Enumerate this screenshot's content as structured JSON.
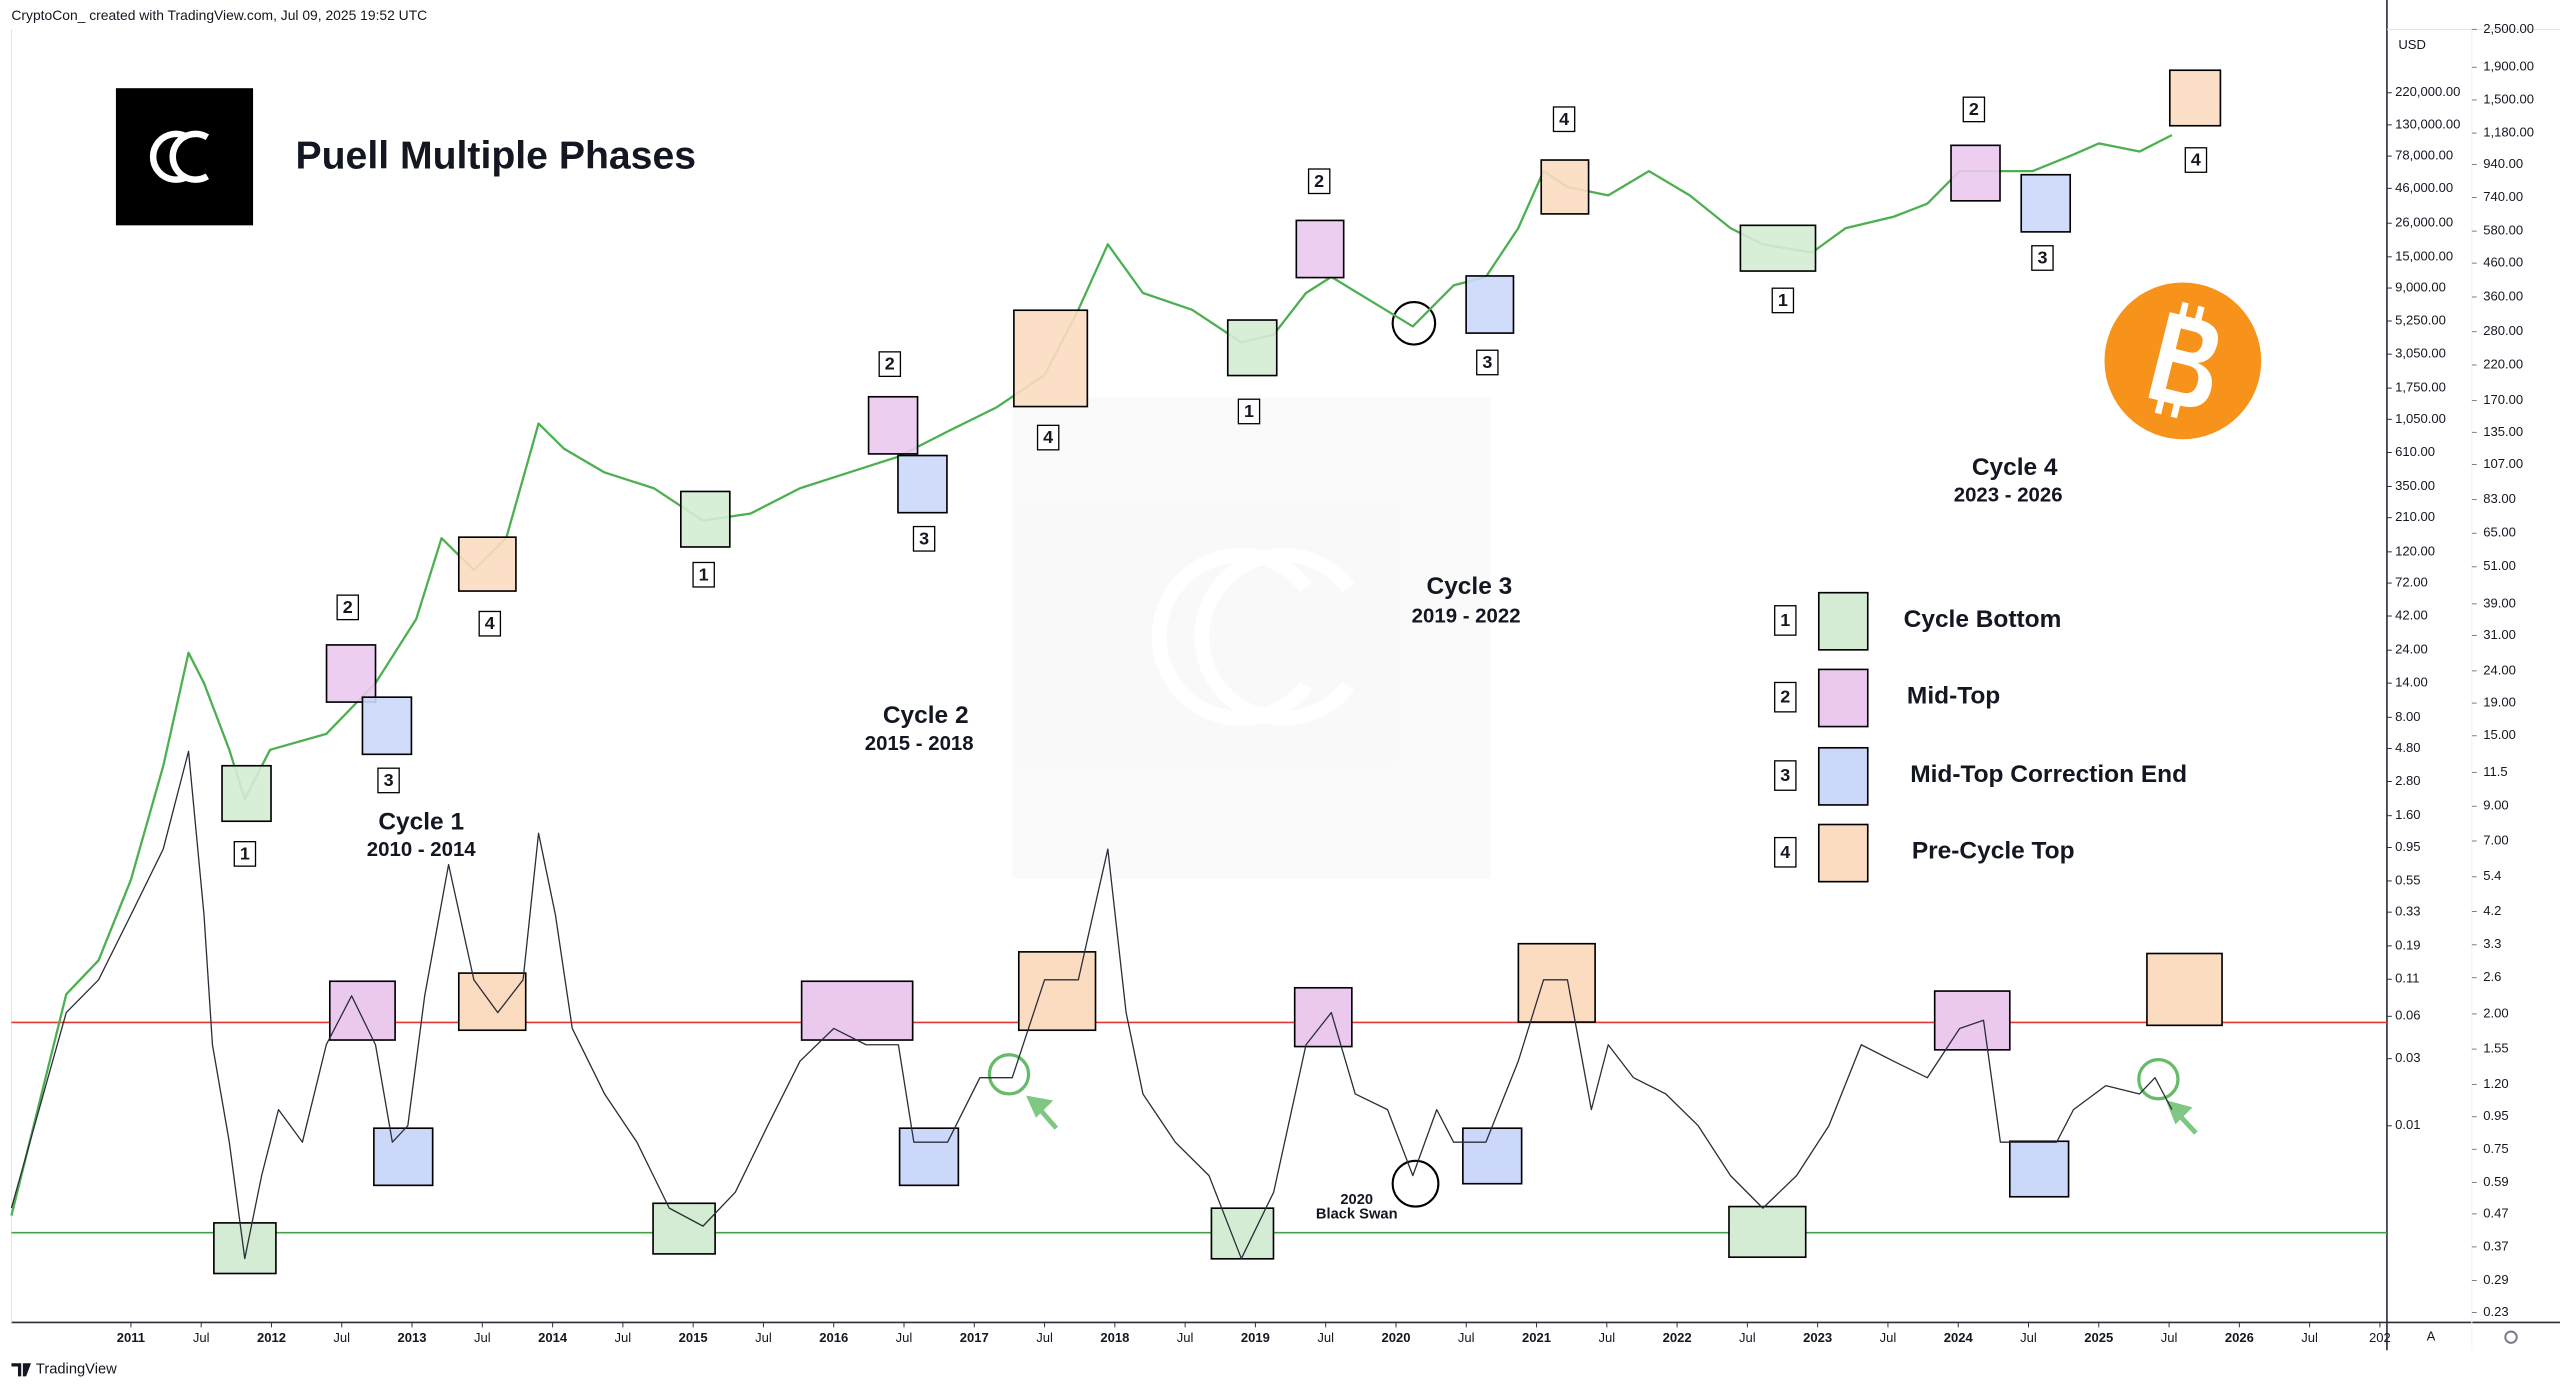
{
  "header": "CryptoCon_  created with TradingView.com, Jul 09, 2025 19:52 UTC",
  "footer": "TradingView",
  "chart_data": {
    "type": "line",
    "title": "Puell Multiple Phases",
    "currency": "USD",
    "xlim": [
      2010.15,
      2027.05
    ],
    "xticks": [
      2011,
      {
        "value": 2011.5,
        "label": "Jul"
      },
      2012,
      {
        "value": 2012.5,
        "label": "Jul"
      },
      2013,
      {
        "value": 2013.5,
        "label": "Jul"
      },
      2014,
      {
        "value": 2014.5,
        "label": "Jul"
      },
      2015,
      {
        "value": 2015.5,
        "label": "Jul"
      },
      2016,
      {
        "value": 2016.5,
        "label": "Jul"
      },
      2017,
      {
        "value": 2017.5,
        "label": "Jul"
      },
      2018,
      {
        "value": 2018.5,
        "label": "Jul"
      },
      2019,
      {
        "value": 2019.5,
        "label": "Jul"
      },
      2020,
      {
        "value": 2020.5,
        "label": "Jul"
      },
      2021,
      {
        "value": 2021.5,
        "label": "Jul"
      },
      2022,
      {
        "value": 2022.5,
        "label": "Jul"
      },
      2023,
      {
        "value": 2023.5,
        "label": "Jul"
      },
      2024,
      {
        "value": 2024.5,
        "label": "Jul"
      },
      2025,
      {
        "value": 2025.5,
        "label": "Jul"
      },
      2026,
      {
        "value": 2026.5,
        "label": "Jul"
      },
      {
        "value": 2027,
        "label": "202"
      }
    ],
    "yscale": "log",
    "ylim": [
      0.0004,
      620000
    ],
    "yticks": [
      {
        "value": 220000,
        "label": "220,000.00"
      },
      {
        "value": 130000,
        "label": "130,000.00"
      },
      {
        "value": 78000,
        "label": "78,000.00"
      },
      {
        "value": 46000,
        "label": "46,000.00"
      },
      {
        "value": 26000,
        "label": "26,000.00"
      },
      {
        "value": 15000,
        "label": "15,000.00"
      },
      {
        "value": 9000,
        "label": "9,000.00"
      },
      {
        "value": 5250,
        "label": "5,250.00"
      },
      {
        "value": 3050,
        "label": "3,050.00"
      },
      {
        "value": 1750,
        "label": "1,750.00"
      },
      {
        "value": 1050,
        "label": "1,050.00"
      },
      {
        "value": 610,
        "label": "610.00"
      },
      {
        "value": 350,
        "label": "350.00"
      },
      {
        "value": 210,
        "label": "210.00"
      },
      {
        "value": 120,
        "label": "120.00"
      },
      {
        "value": 72,
        "label": "72.00"
      },
      {
        "value": 42,
        "label": "42.00"
      },
      {
        "value": 24,
        "label": "24.00"
      },
      {
        "value": 14,
        "label": "14.00"
      },
      {
        "value": 8,
        "label": "8.00"
      },
      {
        "value": 4.8,
        "label": "4.80"
      },
      {
        "value": 2.8,
        "label": "2.80"
      },
      {
        "value": 1.6,
        "label": "1.60"
      },
      0.95,
      0.55,
      0.33,
      0.19,
      0.11,
      0.06,
      0.03,
      0.01
    ],
    "y2scale": "log",
    "y2lim": [
      0.214,
      2500
    ],
    "y2ticks": [
      {
        "value": 2500,
        "label": "2,500.00"
      },
      {
        "value": 1900,
        "label": "1,900.00"
      },
      {
        "value": 1500,
        "label": "1,500.00"
      },
      {
        "value": 1180,
        "label": "1,180.00"
      },
      {
        "value": 940,
        "label": "940.00"
      },
      {
        "value": 740,
        "label": "740.00"
      },
      {
        "value": 580,
        "label": "580.00"
      },
      {
        "value": 460,
        "label": "460.00"
      },
      {
        "value": 360,
        "label": "360.00"
      },
      {
        "value": 280,
        "label": "280.00"
      },
      {
        "value": 220,
        "label": "220.00"
      },
      {
        "value": 170,
        "label": "170.00"
      },
      {
        "value": 135,
        "label": "135.00"
      },
      {
        "value": 107,
        "label": "107.00"
      },
      {
        "value": 83,
        "label": "83.00"
      },
      {
        "value": 65,
        "label": "65.00"
      },
      {
        "value": 51,
        "label": "51.00"
      },
      {
        "value": 39,
        "label": "39.00"
      },
      {
        "value": 31,
        "label": "31.00"
      },
      {
        "value": 24,
        "label": "24.00"
      },
      {
        "value": 19,
        "label": "19.00"
      },
      {
        "value": 15,
        "label": "15.00"
      },
      11.5,
      {
        "value": 9,
        "label": "9.00"
      },
      {
        "value": 7,
        "label": "7.00"
      },
      5.4,
      4.2,
      3.3,
      2.6,
      {
        "value": 2,
        "label": "2.00"
      },
      1.55,
      {
        "value": 1.2,
        "label": "1.20"
      },
      0.95,
      0.75,
      0.59,
      0.47,
      0.37,
      0.29,
      0.23
    ],
    "series": [
      {
        "color": "#4caf50",
        "x": [
          2010.15,
          2010.54,
          2010.77,
          2011.0,
          2011.23,
          2011.41,
          2011.52,
          2011.7,
          2011.81,
          2011.99,
          2012.39,
          2012.74,
          2013.03,
          2013.21,
          2013.44,
          2013.67,
          2013.9,
          2014.08,
          2014.37,
          2014.72,
          2015.07,
          2015.41,
          2015.76,
          2016.11,
          2016.46,
          2016.81,
          2017.16,
          2017.5,
          2017.74,
          2017.95,
          2018.2,
          2018.55,
          2018.9,
          2019.13,
          2019.36,
          2019.54,
          2019.83,
          2020.12,
          2020.41,
          2020.64,
          2020.87,
          2021.05,
          2021.22,
          2021.51,
          2021.8,
          2022.09,
          2022.38,
          2022.61,
          2022.96,
          2023.2,
          2023.54,
          2023.78,
          2024.01,
          2024.24,
          2024.53,
          2024.82,
          2025.0,
          2025.29,
          2025.52
        ],
        "values": [
          0.0023,
          0.086,
          0.15,
          0.56,
          3.6,
          23,
          14,
          4.7,
          2.1,
          4.7,
          6.1,
          14,
          40,
          150,
          89,
          150,
          980,
          650,
          440,
          340,
          200,
          225,
          340,
          440,
          570,
          860,
          1280,
          2170,
          6300,
          18400,
          8300,
          6300,
          3700,
          4200,
          8300,
          10800,
          7200,
          4800,
          9400,
          10800,
          24000,
          61000,
          47000,
          41000,
          61000,
          41000,
          24000,
          18400,
          16100,
          24000,
          28900,
          35800,
          61000,
          61000,
          61000,
          80000,
          96000,
          84000,
          110000
        ]
      },
      {
        "color": "#2a2e39",
        "axis": "y2",
        "x": [
          2010.15,
          2010.54,
          2010.77,
          2011.0,
          2011.23,
          2011.41,
          2011.52,
          2011.58,
          2011.7,
          2011.81,
          2011.93,
          2012.05,
          2012.22,
          2012.39,
          2012.57,
          2012.74,
          2012.86,
          2012.97,
          2013.09,
          2013.26,
          2013.44,
          2013.61,
          2013.79,
          2013.9,
          2014.02,
          2014.14,
          2014.37,
          2014.6,
          2014.83,
          2015.07,
          2015.3,
          2015.53,
          2015.76,
          2016.0,
          2016.23,
          2016.46,
          2016.57,
          2016.81,
          2017.04,
          2017.27,
          2017.5,
          2017.74,
          2017.95,
          2018.08,
          2018.2,
          2018.43,
          2018.67,
          2018.9,
          2019.13,
          2019.36,
          2019.54,
          2019.71,
          2019.94,
          2020.12,
          2020.29,
          2020.41,
          2020.64,
          2020.87,
          2021.05,
          2021.22,
          2021.39,
          2021.51,
          2021.69,
          2021.92,
          2022.15,
          2022.38,
          2022.61,
          2022.85,
          2023.08,
          2023.31,
          2023.54,
          2023.78,
          2024.01,
          2024.18,
          2024.3,
          2024.47,
          2024.7,
          2024.82,
          2025.05,
          2025.29,
          2025.4,
          2025.52
        ],
        "values": [
          0.49,
          2.02,
          2.56,
          4.1,
          6.6,
          13.4,
          4.1,
          1.6,
          0.79,
          0.34,
          0.62,
          1.0,
          0.79,
          1.6,
          2.28,
          1.6,
          0.79,
          0.89,
          2.28,
          5.9,
          2.56,
          2.02,
          2.56,
          7.4,
          4.1,
          1.8,
          1.12,
          0.79,
          0.49,
          0.43,
          0.55,
          0.89,
          1.42,
          1.8,
          1.6,
          1.6,
          0.79,
          0.79,
          1.26,
          1.26,
          2.56,
          2.56,
          6.6,
          2.02,
          1.12,
          0.79,
          0.62,
          0.34,
          0.55,
          1.6,
          2.02,
          1.12,
          1.0,
          0.62,
          1.0,
          0.79,
          0.79,
          1.42,
          2.56,
          2.56,
          1.0,
          1.6,
          1.26,
          1.12,
          0.89,
          0.62,
          0.49,
          0.62,
          0.89,
          1.6,
          1.42,
          1.26,
          1.8,
          1.91,
          0.79,
          0.79,
          0.79,
          1.0,
          1.19,
          1.12,
          1.26,
          1.0
        ]
      }
    ],
    "reference_lines": [
      {
        "axis": "y2",
        "value": 1.88,
        "color": "#e53935"
      },
      {
        "axis": "y2",
        "value": 0.41,
        "color": "#43a047"
      }
    ],
    "phase_labels": [
      "1",
      "2",
      "3",
      "4",
      "1",
      "2",
      "3",
      "4",
      "1",
      "2",
      "3",
      "4",
      "1",
      "2",
      "3",
      "4"
    ],
    "legend": [
      {
        "number": "1",
        "label": "Cycle Bottom",
        "color": "#4caf50",
        "fill": "#d4ecd3"
      },
      {
        "number": "2",
        "label": "Mid-Top",
        "color": "#9c27b0",
        "fill": "#ebc9ef"
      },
      {
        "number": "3",
        "label": "Mid-Top Correction End",
        "color": "#2f62d0",
        "fill": "#cbd8fa"
      },
      {
        "number": "4",
        "label": "Pre-Cycle Top",
        "color": "#f5a623",
        "fill": "#fbdcc0"
      }
    ],
    "cycles": [
      {
        "name": "Cycle 1",
        "years": "2010 - 2014"
      },
      {
        "name": "Cycle 2",
        "years": "2015 - 2018"
      },
      {
        "name": "Cycle 3",
        "years": "2019 - 2022"
      },
      {
        "name": "Cycle 4",
        "years": "2023 - 2026"
      }
    ],
    "annotation": {
      "year": "2020",
      "text": "Black Swan"
    },
    "scale_mode": "A"
  }
}
